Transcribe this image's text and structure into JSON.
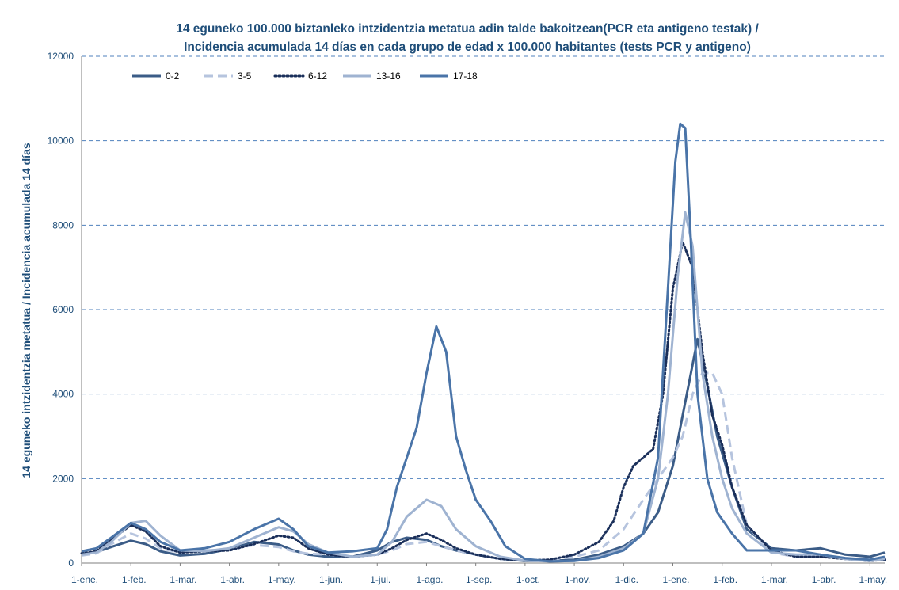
{
  "colors": {
    "title": "#1f4e79",
    "grid": "#4f81bd",
    "axis": "#7f7f7f",
    "series_0_2": "#3b5c87",
    "series_3_5": "#b6c4de",
    "series_6_12": "#1a2f5a",
    "series_13_16": "#9fb3d1",
    "series_17_18": "#4a74a8"
  },
  "chart_data": {
    "type": "line",
    "title": "14 eguneko 100.000 biztanleko intzidentzia metatua adin talde bakoitzean(PCR eta antigeno testak) / Incidencia acumulada 14 días en cada grupo de edad x 100.000 habitantes (tests PCR y antigeno)",
    "title_lines": [
      "14 eguneko 100.000 biztanleko intzidentzia metatua adin talde bakoitzean(PCR eta antigeno testak) /",
      "Incidencia acumulada 14 días en cada grupo de edad x 100.000 habitantes (tests PCR y antigeno)"
    ],
    "ylabel": "14 eguneko intzidentzia metatua / Incidencia acumulada 14 días",
    "xlabel": "",
    "ylim": [
      0,
      12000
    ],
    "yticks": [
      "0",
      "2000",
      "4000",
      "6000",
      "8000",
      "10000",
      "12000"
    ],
    "xticks": [
      "1-ene.",
      "1-feb.",
      "1-mar.",
      "1-abr.",
      "1-may.",
      "1-jun.",
      "1-jul.",
      "1-ago.",
      "1-sep.",
      "1-oct.",
      "1-nov.",
      "1-dic.",
      "1-ene.",
      "1-feb.",
      "1-mar.",
      "1-abr.",
      "1-may."
    ],
    "xlim": [
      0,
      16.3
    ],
    "grid": true,
    "legend_position": "top-left",
    "series": [
      {
        "name": "0-2",
        "style": "solid",
        "x": [
          0,
          0.3,
          0.6,
          1.0,
          1.3,
          1.6,
          2.0,
          2.5,
          3.0,
          3.5,
          4.0,
          4.3,
          4.6,
          5.0,
          5.5,
          6.0,
          6.3,
          6.6,
          7.0,
          7.3,
          7.6,
          8.0,
          8.5,
          9.0,
          9.5,
          10.0,
          10.5,
          11.0,
          11.4,
          11.7,
          12.0,
          12.2,
          12.35,
          12.5,
          12.7,
          12.9,
          13.2,
          13.5,
          14.0,
          14.5,
          15.0,
          15.5,
          16.0,
          16.3
        ],
        "y": [
          220,
          260,
          380,
          530,
          450,
          280,
          180,
          220,
          330,
          500,
          440,
          300,
          200,
          150,
          150,
          300,
          500,
          600,
          550,
          400,
          300,
          200,
          100,
          50,
          50,
          80,
          200,
          400,
          700,
          1200,
          2300,
          3500,
          4400,
          5300,
          4200,
          3000,
          1800,
          800,
          350,
          300,
          350,
          200,
          150,
          250
        ]
      },
      {
        "name": "3-5",
        "style": "dashed",
        "x": [
          0,
          0.3,
          0.6,
          1.0,
          1.3,
          1.6,
          2.0,
          2.5,
          3.0,
          3.5,
          4.0,
          4.3,
          4.6,
          5.0,
          5.5,
          6.0,
          6.3,
          6.6,
          7.0,
          7.3,
          7.6,
          8.0,
          8.5,
          9.0,
          9.5,
          10.0,
          10.5,
          11.0,
          11.4,
          11.7,
          12.0,
          12.2,
          12.4,
          12.6,
          12.8,
          13.0,
          13.2,
          13.5,
          14.0,
          14.5,
          15.0,
          15.5,
          16.0,
          16.3
        ],
        "y": [
          180,
          230,
          450,
          700,
          580,
          350,
          250,
          300,
          320,
          430,
          380,
          280,
          220,
          200,
          150,
          200,
          300,
          450,
          500,
          400,
          300,
          200,
          100,
          60,
          80,
          150,
          300,
          800,
          1500,
          2000,
          2500,
          3000,
          4000,
          4500,
          4500,
          4000,
          2500,
          900,
          250,
          150,
          150,
          100,
          50,
          80
        ]
      },
      {
        "name": "6-12",
        "style": "dotted",
        "x": [
          0,
          0.3,
          0.6,
          1.0,
          1.3,
          1.6,
          2.0,
          2.5,
          3.0,
          3.5,
          4.0,
          4.3,
          4.6,
          5.0,
          5.5,
          6.0,
          6.3,
          6.6,
          7.0,
          7.3,
          7.6,
          8.0,
          8.5,
          9.0,
          9.5,
          10.0,
          10.5,
          10.8,
          11.0,
          11.2,
          11.4,
          11.6,
          11.8,
          12.0,
          12.2,
          12.4,
          12.6,
          12.8,
          13.0,
          13.2,
          13.5,
          14.0,
          14.5,
          15.0,
          15.5,
          16.0,
          16.3
        ],
        "y": [
          230,
          280,
          550,
          900,
          750,
          400,
          250,
          280,
          300,
          450,
          650,
          600,
          350,
          200,
          150,
          200,
          350,
          550,
          700,
          550,
          350,
          200,
          100,
          60,
          80,
          200,
          500,
          1000,
          1800,
          2300,
          2500,
          2700,
          4000,
          6500,
          7600,
          7000,
          5000,
          3500,
          2800,
          1800,
          900,
          300,
          150,
          150,
          100,
          50,
          80
        ]
      },
      {
        "name": "13-16",
        "style": "solid",
        "x": [
          0,
          0.3,
          0.6,
          1.0,
          1.3,
          1.6,
          2.0,
          2.5,
          3.0,
          3.5,
          4.0,
          4.3,
          4.6,
          5.0,
          5.5,
          6.0,
          6.3,
          6.6,
          7.0,
          7.3,
          7.6,
          8.0,
          8.5,
          9.0,
          9.5,
          10.0,
          10.5,
          11.0,
          11.4,
          11.7,
          11.9,
          12.1,
          12.25,
          12.4,
          12.6,
          12.8,
          13.0,
          13.2,
          13.5,
          14.0,
          14.5,
          15.0,
          15.5,
          16.0,
          16.3
        ],
        "y": [
          200,
          250,
          500,
          950,
          1000,
          650,
          300,
          280,
          350,
          600,
          850,
          750,
          450,
          250,
          150,
          200,
          500,
          1100,
          1500,
          1350,
          800,
          400,
          150,
          60,
          40,
          50,
          150,
          350,
          700,
          2000,
          4000,
          6800,
          8300,
          7500,
          4500,
          3000,
          2000,
          1300,
          700,
          250,
          200,
          200,
          100,
          50,
          100
        ]
      },
      {
        "name": "17-18",
        "style": "solid",
        "x": [
          0,
          0.3,
          0.6,
          1.0,
          1.3,
          1.6,
          2.0,
          2.5,
          3.0,
          3.5,
          4.0,
          4.3,
          4.6,
          5.0,
          5.5,
          6.0,
          6.2,
          6.4,
          6.6,
          6.8,
          7.0,
          7.2,
          7.4,
          7.6,
          7.8,
          8.0,
          8.3,
          8.6,
          9.0,
          9.5,
          10.0,
          10.5,
          11.0,
          11.4,
          11.7,
          11.9,
          12.05,
          12.15,
          12.25,
          12.35,
          12.5,
          12.7,
          12.9,
          13.2,
          13.5,
          14.0,
          14.5,
          15.0,
          15.5,
          16.0,
          16.3
        ],
        "y": [
          280,
          350,
          600,
          950,
          800,
          500,
          300,
          350,
          500,
          800,
          1050,
          800,
          400,
          250,
          280,
          350,
          800,
          1800,
          2500,
          3200,
          4500,
          5600,
          5000,
          3000,
          2200,
          1500,
          1000,
          400,
          100,
          40,
          50,
          120,
          300,
          700,
          2500,
          6500,
          9500,
          10400,
          10300,
          8000,
          4000,
          2000,
          1200,
          700,
          300,
          300,
          300,
          200,
          120,
          80,
          150
        ]
      }
    ]
  }
}
